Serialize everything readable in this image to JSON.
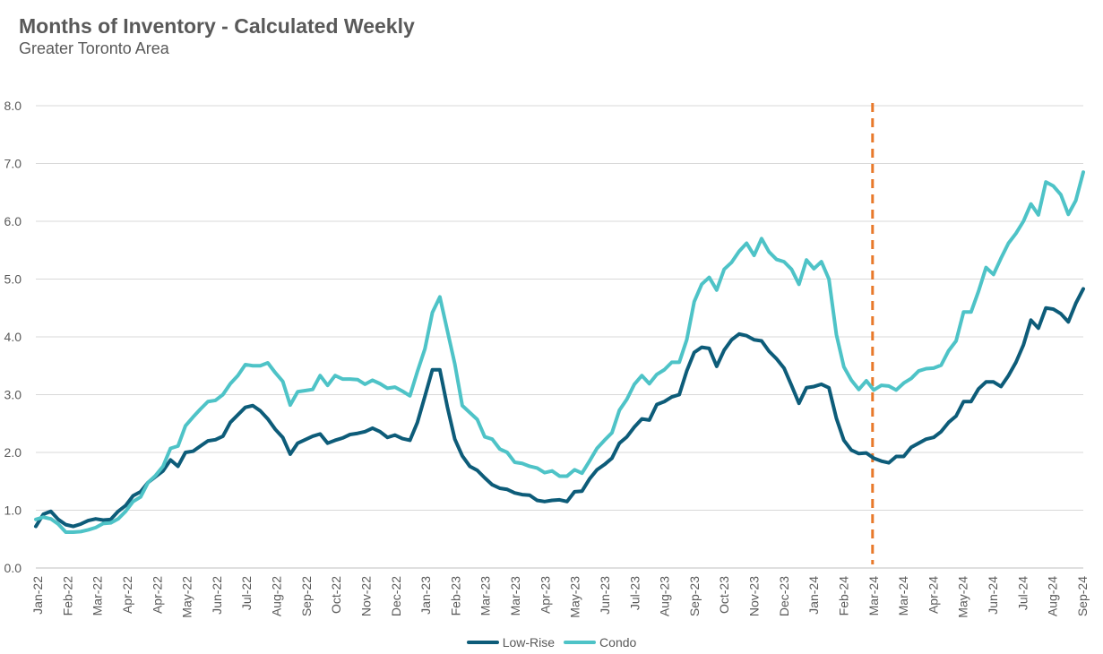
{
  "header": {
    "title": "Months of Inventory - Calculated Weekly",
    "subtitle": "Greater Toronto Area"
  },
  "chart_data": {
    "type": "line",
    "title": "Months of Inventory - Calculated Weekly",
    "subtitle": "Greater Toronto Area",
    "xlabel": "",
    "ylabel": "",
    "ylim": [
      0,
      8
    ],
    "yticks": [
      "0.0",
      "1.0",
      "2.0",
      "3.0",
      "4.0",
      "5.0",
      "6.0",
      "7.0",
      "8.0"
    ],
    "x_tick_labels": [
      "Jan-22",
      "Feb-22",
      "Mar-22",
      "Apr-22",
      "Apr-22",
      "May-22",
      "Jun-22",
      "Jul-22",
      "Aug-22",
      "Sep-22",
      "Oct-22",
      "Nov-22",
      "Dec-22",
      "Jan-23",
      "Feb-23",
      "Mar-23",
      "Mar-23",
      "Apr-23",
      "May-23",
      "Jun-23",
      "Jul-23",
      "Aug-23",
      "Sep-23",
      "Oct-23",
      "Nov-23",
      "Dec-23",
      "Jan-24",
      "Feb-24",
      "Mar-24",
      "Mar-24",
      "Apr-24",
      "May-24",
      "Jun-24",
      "Jul-24",
      "Aug-24",
      "Sep-24"
    ],
    "grid": true,
    "legend_position": "bottom",
    "annotation": {
      "type": "vertical-dashed-line",
      "at_tick": "Mar-24",
      "color": "#E8792B"
    },
    "series": [
      {
        "name": "Low-Rise",
        "color": "#0D5C79",
        "values": [
          0.72,
          0.93,
          0.98,
          0.84,
          0.75,
          0.72,
          0.76,
          0.82,
          0.85,
          0.83,
          0.84,
          0.98,
          1.08,
          1.25,
          1.32,
          1.48,
          1.58,
          1.68,
          1.87,
          1.76,
          2.0,
          2.02,
          2.11,
          2.2,
          2.22,
          2.28,
          2.52,
          2.65,
          2.78,
          2.81,
          2.72,
          2.58,
          2.4,
          2.26,
          1.97,
          2.16,
          2.22,
          2.28,
          2.32,
          2.16,
          2.21,
          2.25,
          2.31,
          2.33,
          2.36,
          2.42,
          2.36,
          2.26,
          2.3,
          2.24,
          2.21,
          2.52,
          2.97,
          3.43,
          3.43,
          2.79,
          2.23,
          1.94,
          1.76,
          1.69,
          1.56,
          1.44,
          1.38,
          1.36,
          1.3,
          1.27,
          1.26,
          1.17,
          1.15,
          1.17,
          1.18,
          1.15,
          1.32,
          1.33,
          1.54,
          1.7,
          1.79,
          1.9,
          2.16,
          2.27,
          2.44,
          2.58,
          2.56,
          2.83,
          2.88,
          2.96,
          3.0,
          3.41,
          3.73,
          3.82,
          3.8,
          3.49,
          3.77,
          3.95,
          4.05,
          4.02,
          3.95,
          3.93,
          3.75,
          3.62,
          3.46,
          3.16,
          2.85,
          3.12,
          3.14,
          3.18,
          3.12,
          2.59,
          2.21,
          2.04,
          1.98,
          1.99,
          1.9,
          1.85,
          1.82,
          1.93,
          1.93,
          2.09,
          2.16,
          2.23,
          2.26,
          2.36,
          2.52,
          2.63,
          2.88,
          2.88,
          3.1,
          3.22,
          3.22,
          3.14,
          3.33,
          3.56,
          3.86,
          4.29,
          4.15,
          4.5,
          4.48,
          4.4,
          4.26,
          4.58,
          4.83
        ]
      },
      {
        "name": "Condo",
        "color": "#4EC3C7",
        "values": [
          0.84,
          0.88,
          0.85,
          0.76,
          0.62,
          0.62,
          0.63,
          0.66,
          0.7,
          0.77,
          0.78,
          0.85,
          0.98,
          1.15,
          1.23,
          1.48,
          1.6,
          1.76,
          2.07,
          2.11,
          2.46,
          2.61,
          2.75,
          2.88,
          2.9,
          3.0,
          3.19,
          3.33,
          3.52,
          3.5,
          3.5,
          3.55,
          3.38,
          3.23,
          2.82,
          3.05,
          3.07,
          3.09,
          3.33,
          3.16,
          3.33,
          3.27,
          3.27,
          3.26,
          3.18,
          3.25,
          3.19,
          3.11,
          3.13,
          3.06,
          2.98,
          3.4,
          3.79,
          4.42,
          4.69,
          4.11,
          3.53,
          2.81,
          2.69,
          2.57,
          2.27,
          2.23,
          2.06,
          2.0,
          1.83,
          1.81,
          1.76,
          1.73,
          1.65,
          1.68,
          1.59,
          1.59,
          1.7,
          1.64,
          1.85,
          2.07,
          2.21,
          2.34,
          2.73,
          2.92,
          3.18,
          3.33,
          3.19,
          3.35,
          3.43,
          3.56,
          3.56,
          3.95,
          4.61,
          4.91,
          5.03,
          4.81,
          5.17,
          5.29,
          5.48,
          5.62,
          5.41,
          5.7,
          5.47,
          5.34,
          5.3,
          5.17,
          4.91,
          5.33,
          5.18,
          5.3,
          5.0,
          4.04,
          3.48,
          3.25,
          3.09,
          3.24,
          3.08,
          3.16,
          3.15,
          3.08,
          3.2,
          3.28,
          3.41,
          3.45,
          3.46,
          3.51,
          3.76,
          3.93,
          4.43,
          4.43,
          4.79,
          5.2,
          5.08,
          5.36,
          5.62,
          5.79,
          6.0,
          6.3,
          6.11,
          6.68,
          6.61,
          6.46,
          6.12,
          6.36,
          6.85
        ]
      }
    ]
  }
}
